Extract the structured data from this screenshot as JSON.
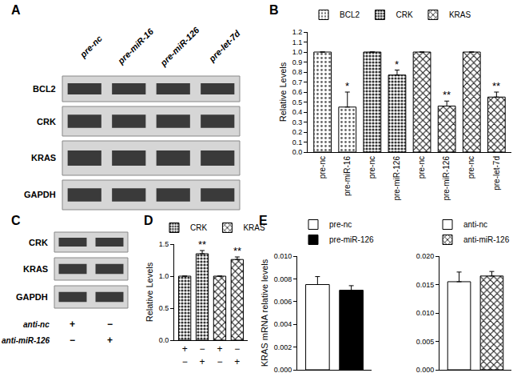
{
  "panel_labels": [
    "A",
    "B",
    "C",
    "D",
    "E"
  ],
  "blots": [
    {
      "lanes": [
        "pre-nc",
        "pre-miR-16",
        "pre-miR-126",
        "pre-let-7d"
      ],
      "rows": [
        "BCL2",
        "CRK",
        "KRAS",
        "GAPDH"
      ]
    },
    {
      "rows": [
        "CRK",
        "KRAS",
        "GAPDH"
      ],
      "conditions": [
        {
          "name": "anti-nc",
          "signs": [
            "+",
            "−"
          ]
        },
        {
          "name": "anti-miR-126",
          "signs": [
            "−",
            "+"
          ]
        }
      ]
    }
  ],
  "chart_data": [
    {
      "type": "bar",
      "y_label": "Relative Levels",
      "legend": "top",
      "categories": [
        "pre-nc",
        "pre-miR-16",
        "pre-nc",
        "pre-miR-126",
        "pre-nc",
        "pre-miR-126",
        "pre-nc",
        "pre-let-7d"
      ],
      "ylim": [
        0,
        1.2
      ],
      "yticks": [
        {
          "value": 0,
          "label": "0.0"
        },
        0.1,
        0.2,
        0.3,
        0.4,
        0.5,
        0.6,
        0.7,
        0.8,
        0.9,
        {
          "value": 1,
          "label": "1.0"
        },
        1.1,
        1.2
      ],
      "series": [
        {
          "name": "BCL2",
          "color": "#ffffff",
          "marker": "dots",
          "values": [
            1,
            0.45,
            null,
            null,
            null,
            null,
            null,
            null
          ],
          "errors": [
            null,
            0.15,
            null,
            null,
            null,
            null,
            null,
            null
          ],
          "annotations": [
            null,
            "*",
            null,
            null,
            null,
            null,
            null,
            null
          ]
        },
        {
          "name": "CRK",
          "color": "#ffffff",
          "marker": "dense_dots",
          "values": [
            null,
            null,
            1,
            0.77,
            null,
            null,
            null,
            null
          ],
          "errors": [
            null,
            null,
            null,
            0.05,
            null,
            null,
            null,
            null
          ],
          "annotations": [
            null,
            null,
            null,
            "*",
            null,
            null,
            null,
            null
          ]
        },
        {
          "name": "KRAS",
          "color": "#ffffff",
          "marker": "checker",
          "values": [
            null,
            null,
            null,
            null,
            1,
            0.46,
            1,
            0.55
          ],
          "errors": [
            null,
            null,
            null,
            null,
            null,
            0.05,
            null,
            0.05
          ],
          "annotations": [
            null,
            null,
            null,
            null,
            null,
            "**",
            null,
            "**"
          ]
        }
      ]
    },
    {
      "type": "bar",
      "y_label": "Relative Levels",
      "legend": "top",
      "categories": [
        [
          "+",
          "−"
        ],
        [
          "−",
          "+"
        ],
        [
          "+",
          "−"
        ],
        [
          "−",
          "+"
        ]
      ],
      "ylim": [
        0,
        1.5
      ],
      "yticks": [
        {
          "value": 0,
          "label": "0.0"
        },
        0.5,
        {
          "value": 1,
          "label": "1.0"
        },
        1.5
      ],
      "series": [
        {
          "name": "CRK",
          "color": "#ffffff",
          "marker": "dense_dots",
          "values": [
            1,
            1.35,
            null,
            null
          ],
          "errors": [
            null,
            0.05,
            null,
            null
          ],
          "annotations": [
            null,
            "**",
            null,
            null
          ]
        },
        {
          "name": "KRAS",
          "color": "#ffffff",
          "marker": "checker",
          "values": [
            null,
            null,
            1,
            1.26
          ],
          "errors": [
            null,
            null,
            null,
            0.04
          ],
          "annotations": [
            null,
            null,
            null,
            "**"
          ]
        }
      ]
    },
    {
      "type": "bar",
      "y_label": "KRAS mRNA relative levels",
      "legend": "top",
      "tick_labels": "y",
      "categories": [
        null,
        null
      ],
      "ylim": [
        0,
        0.01
      ],
      "yticks": [
        {
          "value": 0,
          "label": "0.000"
        },
        0.002,
        0.004,
        0.006,
        0.008,
        {
          "value": 0.01,
          "label": "0.010"
        }
      ],
      "series": [
        {
          "name": "pre-nc",
          "color": "#ffffff",
          "marker": "plain",
          "values": [
            0.0075,
            null
          ],
          "errors": [
            0.0007,
            null
          ]
        },
        {
          "name": "pre-miR-126",
          "color": "#000000",
          "marker": "plain",
          "values": [
            null,
            0.007
          ],
          "errors": [
            null,
            0.0004
          ]
        }
      ]
    },
    {
      "type": "bar",
      "legend": "top",
      "tick_labels": "y",
      "categories": [
        null,
        null
      ],
      "ylim": [
        0,
        0.02
      ],
      "yticks": [
        {
          "value": 0,
          "label": "0.000"
        },
        0.005,
        {
          "value": 0.01,
          "label": "0.010"
        },
        0.015,
        {
          "value": 0.02,
          "label": "0.020"
        }
      ],
      "series": [
        {
          "name": "anti-nc",
          "color": "#ffffff",
          "marker": "plain",
          "values": [
            0.0155,
            null
          ],
          "errors": [
            0.0017,
            null
          ]
        },
        {
          "name": "anti-miR-126",
          "color": "#ffffff",
          "marker": "checker",
          "values": [
            null,
            0.0165
          ],
          "errors": [
            null,
            0.0008
          ]
        }
      ]
    }
  ]
}
